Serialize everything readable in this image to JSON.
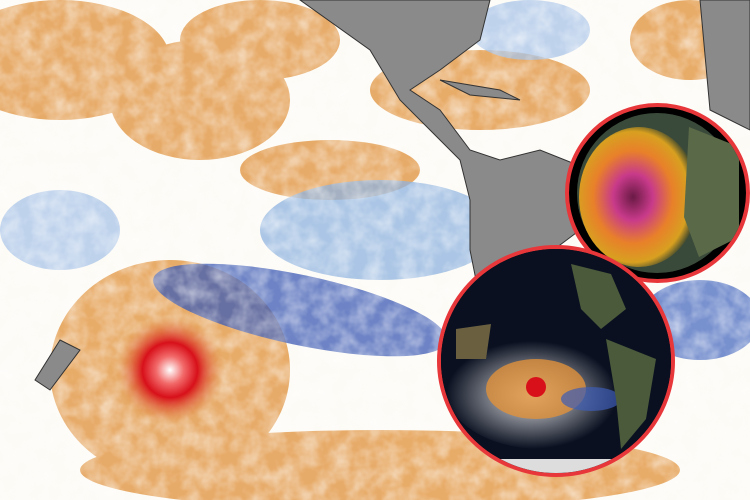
{
  "map": {
    "type": "sea-surface temperature anomaly",
    "colors": {
      "warm": "#e0913a",
      "hot": "#e0141e",
      "cool": "#8fb4e0",
      "cold": "#2f4fa8",
      "land": "#8a8a8a",
      "neutral": "#fdfbf6"
    },
    "hotspot_icon": "marine-heatwave-hotspot"
  },
  "insets": [
    {
      "name": "north-pacific-globe",
      "ring_color": "#e8373a"
    },
    {
      "name": "south-pacific-globe",
      "ring_color": "#e8373a"
    }
  ]
}
